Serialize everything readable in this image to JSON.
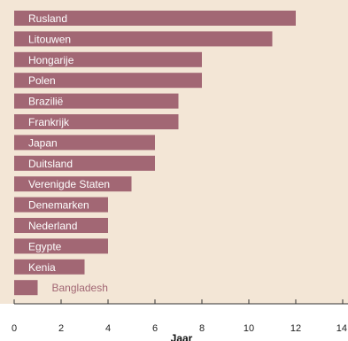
{
  "colors": {
    "panel_background": "#f3e6d6",
    "bar_fill": "#a26774",
    "bar_label_inside": "#ffffff",
    "axis": "#333333"
  },
  "chart_data": {
    "type": "bar",
    "orientation": "horizontal",
    "categories": [
      "Rusland",
      "Litouwen",
      "Hongarije",
      "Polen",
      "Brazilië",
      "Frankrijk",
      "Japan",
      "Duitsland",
      "Verenigde Staten",
      "Denemarken",
      "Nederland",
      "Egypte",
      "Kenia",
      "Bangladesh"
    ],
    "values": [
      12,
      11,
      8,
      8,
      7,
      7,
      6,
      6,
      5,
      4,
      4,
      4,
      3,
      1
    ],
    "xlabel": "Jaar",
    "ylabel": "",
    "xlim": [
      0,
      14
    ],
    "xticks": [
      0,
      2,
      4,
      6,
      8,
      10,
      12,
      14
    ],
    "grid": false,
    "legend": "none"
  }
}
